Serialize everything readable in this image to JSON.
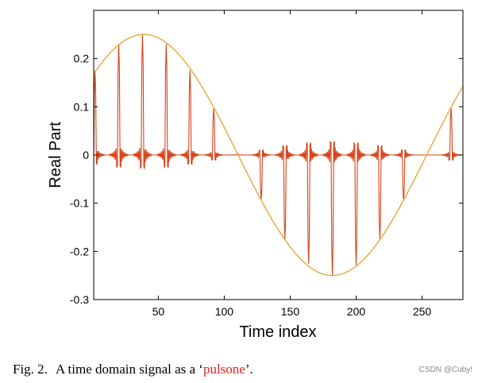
{
  "chart_data": {
    "type": "line",
    "title": "",
    "xlabel": "Time index",
    "ylabel": "Real Part",
    "xlim": [
      1,
      281
    ],
    "ylim": [
      -0.3,
      0.3
    ],
    "x_ticks": [
      50,
      100,
      150,
      200,
      250
    ],
    "x_tick_labels": [
      "50",
      "100",
      "150",
      "200",
      "250"
    ],
    "y_ticks": [
      0.2,
      0.1,
      0,
      -0.1,
      -0.2,
      -0.3
    ],
    "y_tick_labels": [
      "0.2",
      "0.1",
      "0",
      "-0.1",
      "-0.2",
      "-0.3"
    ],
    "grid": false,
    "legend": false,
    "series": [
      {
        "name": "envelope",
        "kind": "sinusoid",
        "color": "#e8a73c",
        "amplitude": 0.25,
        "period": 286,
        "peak_index": 39
      },
      {
        "name": "pulsone",
        "kind": "pulse-train",
        "color": "#d64218",
        "pulse_positions": [
          2,
          20,
          38,
          56,
          74,
          92,
          110,
          128,
          146,
          164,
          182,
          200,
          218,
          236,
          254,
          272
        ],
        "pulse_peak_values": [
          0.175,
          0.23,
          0.25,
          0.23,
          0.175,
          0.097,
          0.003,
          -0.093,
          -0.175,
          -0.225,
          -0.25,
          -0.228,
          -0.175,
          -0.095,
          0.0,
          0.097
        ]
      }
    ]
  },
  "caption": {
    "prefix": "Fig. 2.",
    "text_before": "A time domain signal as a ‘",
    "highlight": "pulsone",
    "text_after": "’."
  },
  "watermark": "CSDN @Cuby!"
}
